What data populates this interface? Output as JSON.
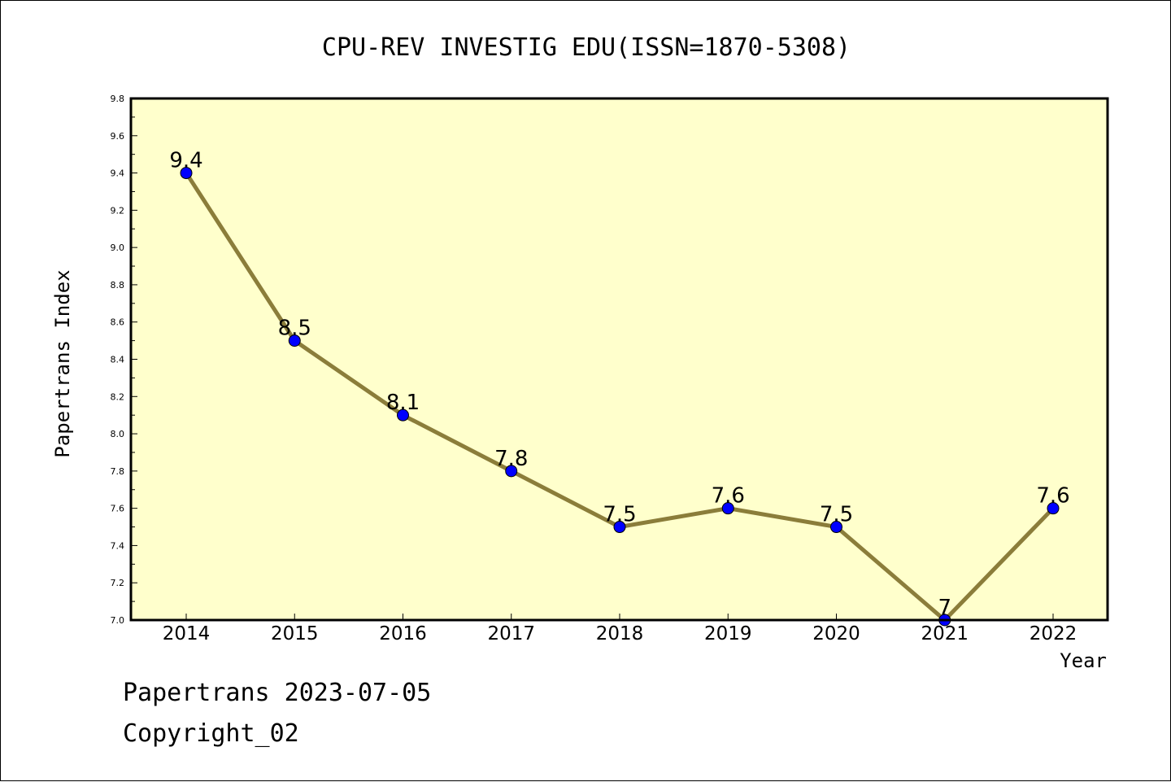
{
  "chart_data": {
    "type": "line",
    "title": "CPU-REV INVESTIG EDU(ISSN=1870-5308)",
    "xlabel": "Year",
    "ylabel": "Papertrans Index",
    "x": [
      "2014",
      "2015",
      "2016",
      "2017",
      "2018",
      "2019",
      "2020",
      "2021",
      "2022"
    ],
    "series": [
      {
        "values": [
          9.4,
          8.5,
          8.1,
          7.8,
          7.5,
          7.6,
          7.5,
          7.0,
          7.6
        ],
        "labels": [
          "9.4",
          "8.5",
          "8.1",
          "7.8",
          "7.5",
          "7.6",
          "7.5",
          "7",
          "7.6"
        ]
      }
    ],
    "ylim": [
      7.0,
      9.8
    ],
    "yticks": [
      "7.0",
      "7.2",
      "7.4",
      "7.6",
      "7.8",
      "8.0",
      "8.2",
      "8.4",
      "8.6",
      "8.8",
      "9.0",
      "9.2",
      "9.4",
      "9.6",
      "9.8"
    ],
    "grid": false,
    "colors": {
      "plot_background": "#ffffcc",
      "line": "#8b7d3a",
      "marker": "#0000ff"
    }
  },
  "footer": {
    "line1": "Papertrans 2023-07-05",
    "line2": "Copyright_02"
  }
}
